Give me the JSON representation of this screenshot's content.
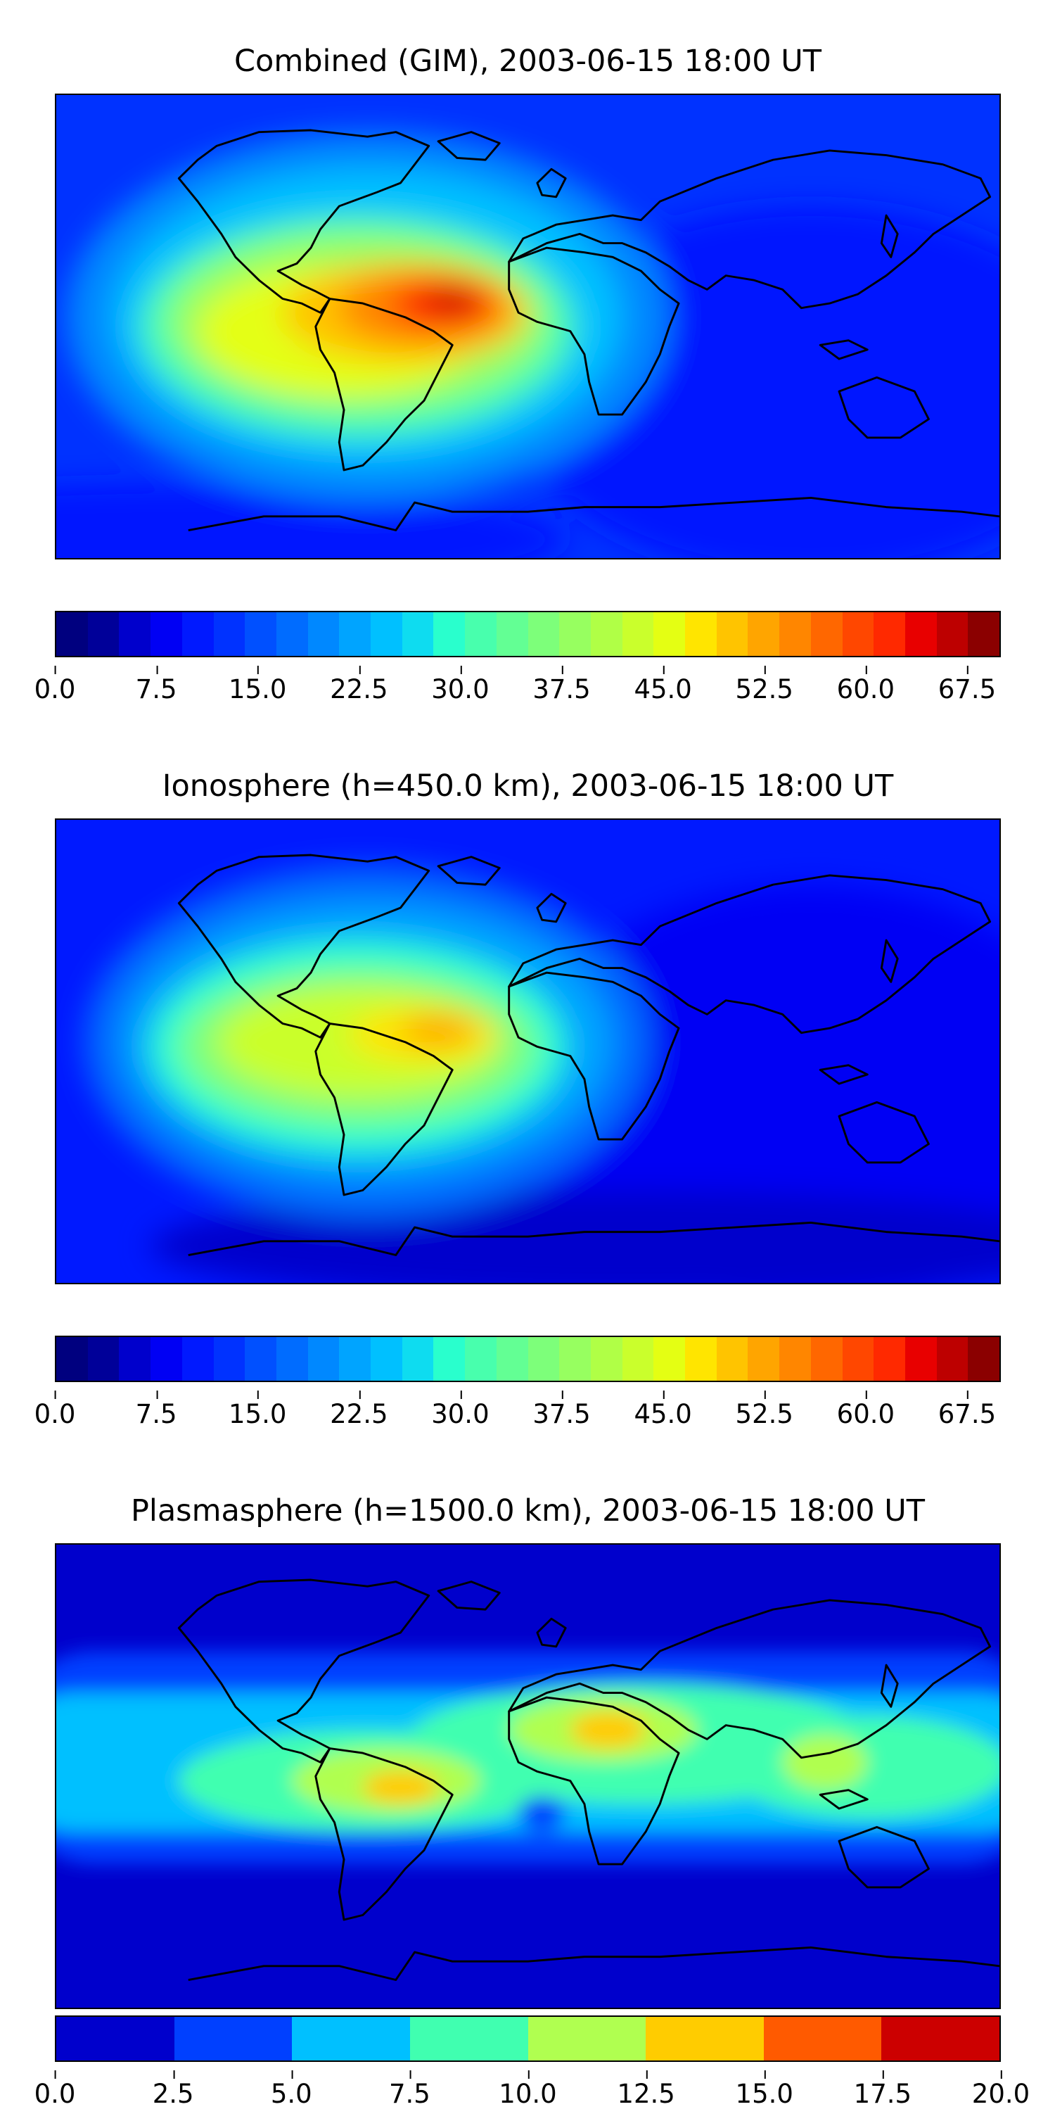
{
  "panels": [
    {
      "title": "Combined (GIM), 2003-06-15 18:00 UT",
      "colorbar": {
        "colors": [
          "#00007f",
          "#000099",
          "#0000cc",
          "#0000f4",
          "#0019ff",
          "#0032ff",
          "#0050ff",
          "#006cff",
          "#0088ff",
          "#00a4ff",
          "#00c0ff",
          "#0edcf0",
          "#29ffcd",
          "#48ffad",
          "#63ff94",
          "#7dff7a",
          "#97ff60",
          "#b0ff46",
          "#caff2c",
          "#e4ff13",
          "#ffe500",
          "#ffc400",
          "#ffa500",
          "#ff8600",
          "#ff6700",
          "#ff4700",
          "#ff2900",
          "#e80000",
          "#bd0000",
          "#8b0000"
        ],
        "ticks": [
          "0.0",
          "7.5",
          "15.0",
          "22.5",
          "30.0",
          "37.5",
          "45.0",
          "52.5",
          "60.0",
          "67.5"
        ],
        "range": [
          0,
          70
        ]
      },
      "features": "Peak values over northern South America (~67) extending east across the Atlantic; broad elevated band (30-50) over central Americas; low values (<10) over Asia, Australia and polar regions."
    },
    {
      "title": "Ionosphere  (h=450.0 km), 2003-06-15 18:00 UT",
      "colorbar": {
        "colors": [
          "#00007f",
          "#000099",
          "#0000cc",
          "#0000f4",
          "#0019ff",
          "#0032ff",
          "#0050ff",
          "#006cff",
          "#0088ff",
          "#00a4ff",
          "#00c0ff",
          "#0edcf0",
          "#29ffcd",
          "#48ffad",
          "#63ff94",
          "#7dff7a",
          "#97ff60",
          "#b0ff46",
          "#caff2c",
          "#e4ff13",
          "#ffe500",
          "#ffc400",
          "#ffa500",
          "#ff8600",
          "#ff6700",
          "#ff4700",
          "#ff2900",
          "#e80000",
          "#bd0000",
          "#8b0000"
        ],
        "ticks": [
          "0.0",
          "7.5",
          "15.0",
          "22.5",
          "30.0",
          "37.5",
          "45.0",
          "52.5",
          "60.0",
          "67.5"
        ],
        "range": [
          0,
          70
        ]
      },
      "features": "Maximum (~50) near the equator east of South America; moderate band (25-45) across the Americas and Atlantic; low values elsewhere."
    },
    {
      "title": "Plasmasphere (h=1500.0 km), 2003-06-15 18:00 UT",
      "colorbar": {
        "colors": [
          "#0000cc",
          "#0040ff",
          "#00c0ff",
          "#40ffb0",
          "#b0ff50",
          "#ffcc00",
          "#ff5a00",
          "#cc0000"
        ],
        "ticks": [
          "0.0",
          "2.5",
          "5.0",
          "7.5",
          "10.0",
          "12.5",
          "15.0",
          "17.5",
          "20.0"
        ],
        "range": [
          0,
          20
        ]
      },
      "features": "Equatorial belt of 7.5-12.5 with local maxima (12.5-15) over South America and Arabia/northeast Africa; low values (0-2.5) at high latitudes."
    }
  ]
}
